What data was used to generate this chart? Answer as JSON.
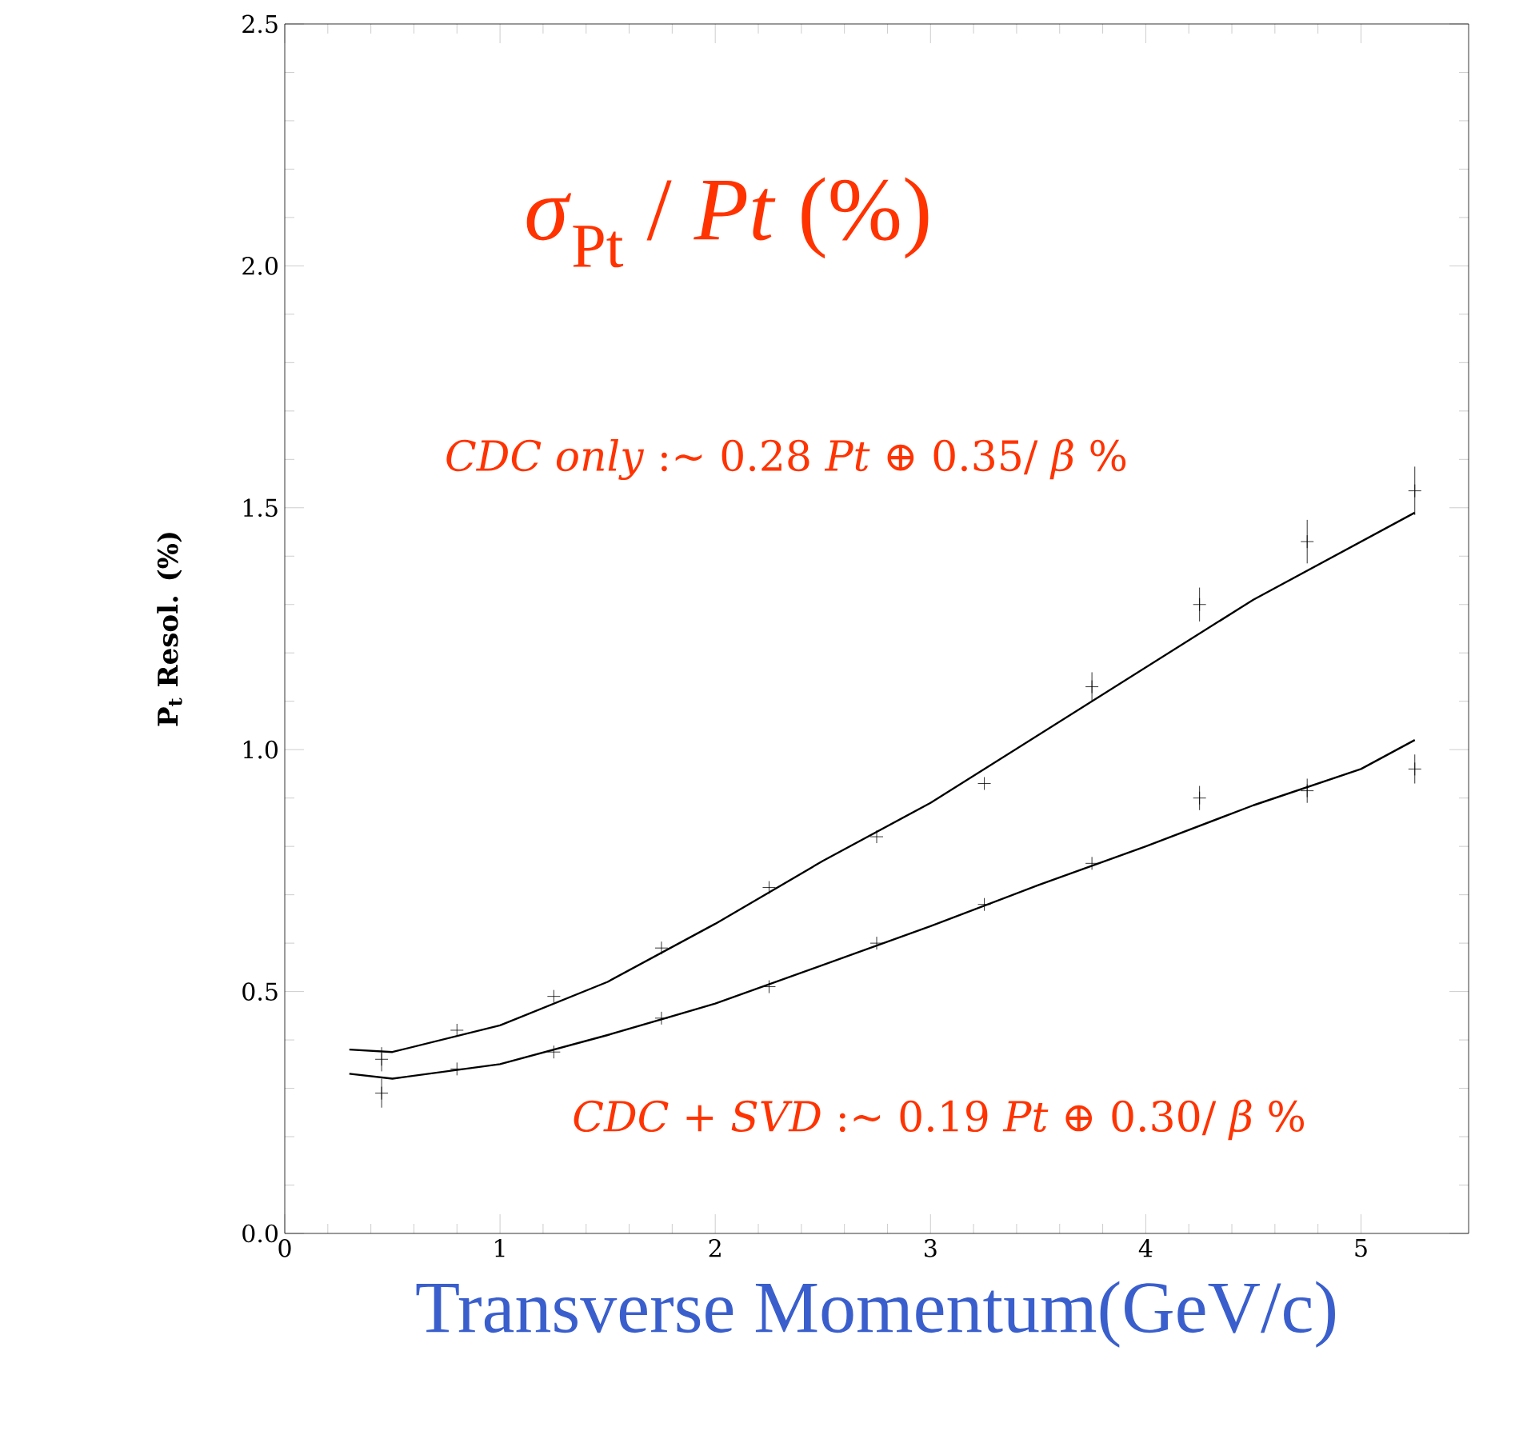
{
  "chart_data": {
    "type": "scatter",
    "title": "*σ*$_{Pt}$ / *Pt*    (%)",
    "xlabel": "Transverse Momentum(GeV/c)",
    "ylabel": "P$_{t}$ Resol. (%)",
    "annotations": [
      "*CDC only* :~ 0.28 *Pt* ⊕ 0.35/ *β*  %",
      "*CDC* + *SVD* :~ 0.19 *Pt* ⊕ 0.30/ *β* %"
    ],
    "xlim": [
      0,
      5.5
    ],
    "ylim": [
      0,
      2.5
    ],
    "xticks": [
      0,
      1,
      2,
      3,
      4,
      5
    ],
    "yticks": [
      {
        "value": 0,
        "label": "0.0"
      },
      {
        "value": 0.5,
        "label": "0.5"
      },
      {
        "value": 1,
        "label": "1.0"
      },
      {
        "value": 1.5,
        "label": "1.5"
      },
      {
        "value": 2,
        "label": "2.0"
      },
      {
        "value": 2.5,
        "label": "2.5"
      }
    ],
    "grid": false,
    "series": [
      {
        "marker": "cross",
        "color": "#000000",
        "x": [
          0.45,
          0.8,
          1.25,
          1.75,
          2.25,
          2.75,
          3.25,
          3.75,
          4.25,
          4.75,
          5.25
        ],
        "values": [
          0.36,
          0.42,
          0.49,
          0.59,
          0.715,
          0.82,
          0.93,
          1.13,
          1.3,
          1.43,
          1.535
        ],
        "errors": [
          0.025,
          null,
          null,
          null,
          null,
          null,
          null,
          0.03,
          0.035,
          0.045,
          0.05
        ]
      },
      {
        "marker": "cross",
        "color": "#000000",
        "x": [
          0.45,
          0.8,
          1.25,
          1.75,
          2.25,
          2.75,
          3.25,
          3.75,
          4.25,
          4.75,
          5.25
        ],
        "values": [
          0.29,
          0.34,
          0.375,
          0.445,
          0.51,
          0.6,
          0.68,
          0.765,
          0.9,
          0.915,
          0.96
        ],
        "errors": [
          0.03,
          null,
          null,
          null,
          null,
          null,
          null,
          null,
          0.025,
          0.025,
          0.03
        ]
      },
      {
        "type": "line",
        "color": "#000000",
        "x": [
          0.3,
          0.5,
          1,
          1.5,
          2,
          2.5,
          3,
          3.5,
          4,
          4.5,
          5,
          5.25
        ],
        "values": [
          0.38,
          0.375,
          0.43,
          0.52,
          0.64,
          0.77,
          0.89,
          1.03,
          1.17,
          1.31,
          1.43,
          1.49
        ]
      },
      {
        "type": "line",
        "color": "#000000",
        "x": [
          0.3,
          0.5,
          1,
          1.5,
          2,
          2.5,
          3,
          3.5,
          4,
          4.5,
          5,
          5.25
        ],
        "values": [
          0.33,
          0.32,
          0.35,
          0.41,
          0.475,
          0.555,
          0.635,
          0.72,
          0.8,
          0.885,
          0.96,
          1.02
        ]
      }
    ]
  }
}
